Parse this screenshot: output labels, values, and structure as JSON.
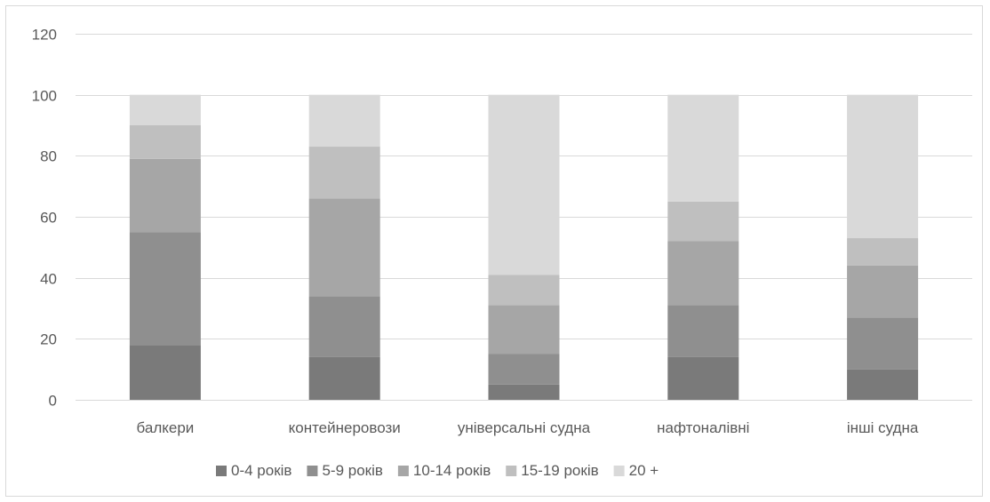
{
  "chart_data": {
    "type": "bar",
    "stacked": true,
    "title": "",
    "xlabel": "",
    "ylabel": "",
    "ylim": [
      0,
      120
    ],
    "yticks": [
      0,
      20,
      40,
      60,
      80,
      100,
      120
    ],
    "grid": true,
    "legend_position": "bottom",
    "categories": [
      "балкери",
      "контейнеровози",
      "універсальні судна",
      "нафтоналівні",
      "інші судна"
    ],
    "series": [
      {
        "name": "0-4 років",
        "color": "#7a7a7a",
        "values": [
          18,
          14,
          5,
          14,
          10
        ]
      },
      {
        "name": "5-9 років",
        "color": "#8f8f8f",
        "values": [
          37,
          20,
          10,
          17,
          17
        ]
      },
      {
        "name": "10-14 років",
        "color": "#a6a6a6",
        "values": [
          24,
          32,
          16,
          21,
          17
        ]
      },
      {
        "name": "15-19 років",
        "color": "#bfbfbf",
        "values": [
          11,
          17,
          10,
          13,
          9
        ]
      },
      {
        "name": "20 +",
        "color": "#d9d9d9",
        "values": [
          10,
          17,
          59,
          35,
          47
        ]
      }
    ]
  }
}
